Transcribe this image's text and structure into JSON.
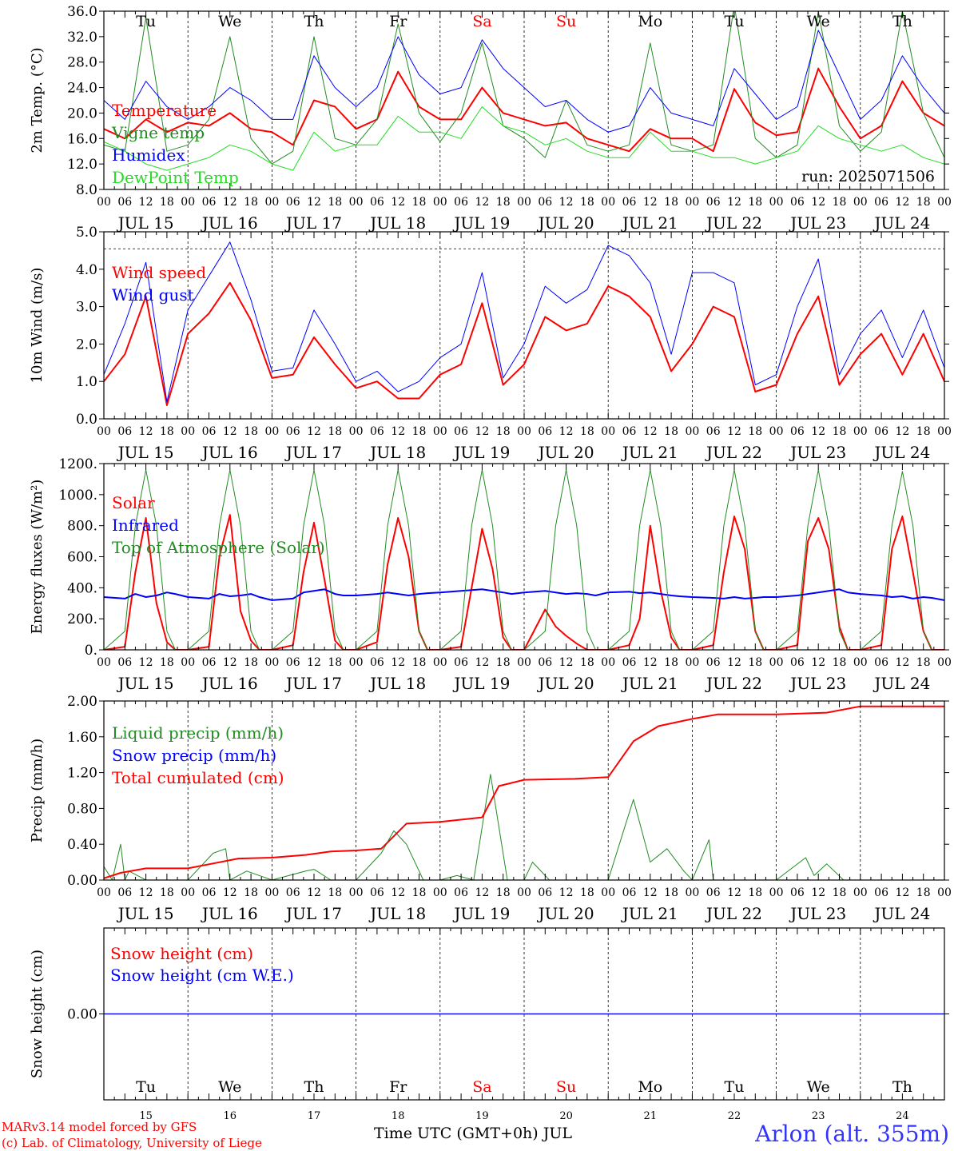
{
  "station": "Arlon (alt. 355m)",
  "run_label": "run: 2025071506",
  "credits": [
    "MARv3.14 model forced by GFS",
    "(c) Lab. of Climatology, University of Liege"
  ],
  "xlabel": "Time UTC (GMT+0h) JUL",
  "hour_ticks": [
    "00",
    "06",
    "12",
    "18"
  ],
  "day_labels": [
    "JUL 15",
    "JUL 16",
    "JUL 17",
    "JUL 18",
    "JUL 19",
    "JUL 20",
    "JUL 21",
    "JUL 22",
    "JUL 23",
    "JUL 24"
  ],
  "weekdays": [
    "Tu",
    "We",
    "Th",
    "Fr",
    "Sa",
    "Su",
    "Mo",
    "Tu",
    "We",
    "Th"
  ],
  "weekend_flags": [
    false,
    false,
    false,
    false,
    true,
    true,
    false,
    false,
    false,
    false
  ],
  "day_numbers": [
    "15",
    "16",
    "17",
    "18",
    "19",
    "20",
    "21",
    "22",
    "23",
    "24"
  ],
  "colors": {
    "red": "#ff0000",
    "green": "#228b22",
    "blue": "#0000ff",
    "lightgreen": "#22dd22",
    "weekend": "#ff0000"
  },
  "chart_data": [
    {
      "type": "line",
      "ylabel": "2m Temp. (°C)",
      "ylim": [
        8,
        36
      ],
      "yticks": [
        "8.0",
        "12.0",
        "16.0",
        "20.0",
        "24.0",
        "28.0",
        "32.0",
        "36.0"
      ],
      "ref_line": 36,
      "x_days": [
        0,
        0.25,
        0.5,
        0.75,
        1,
        1.25,
        1.5,
        1.75,
        2,
        2.25,
        2.5,
        2.75,
        3,
        3.25,
        3.5,
        3.75,
        4,
        4.25,
        4.5,
        4.75,
        5,
        5.25,
        5.5,
        5.75,
        6,
        6.25,
        6.5,
        6.75,
        7,
        7.25,
        7.5,
        7.75,
        8,
        8.25,
        8.5,
        8.75,
        9,
        9.25,
        9.5,
        9.75,
        10
      ],
      "series": [
        {
          "name": "Temperature",
          "color": "#ff0000",
          "width": 2,
          "values": [
            17.5,
            16,
            19,
            17,
            18.5,
            18,
            20,
            17.5,
            17,
            15,
            22,
            21,
            17.5,
            19,
            26.5,
            21,
            19,
            19,
            24,
            20,
            19,
            18,
            18.5,
            16,
            15,
            14,
            17.5,
            16,
            16,
            14,
            23.8,
            18.5,
            16.5,
            17,
            27,
            21,
            16,
            18,
            25,
            20,
            18
          ]
        },
        {
          "name": "Vigne temp",
          "color": "#228b22",
          "width": 1,
          "values": [
            15,
            14,
            35,
            14,
            15,
            19,
            32,
            16,
            12,
            14,
            32,
            16,
            15,
            19,
            34,
            20,
            15.5,
            20,
            31,
            18,
            16,
            13,
            22,
            15,
            14,
            15,
            31,
            15,
            14,
            15,
            37,
            16,
            13,
            15,
            36,
            18,
            14,
            17,
            36,
            20,
            13
          ]
        },
        {
          "name": "Humidex",
          "color": "#0000ff",
          "width": 1,
          "values": [
            22,
            19,
            25,
            21,
            19,
            21,
            24,
            22,
            19,
            19,
            29,
            24,
            21,
            24,
            32,
            26,
            23,
            24,
            31.5,
            27,
            24,
            21,
            22,
            19,
            17,
            18,
            24,
            20,
            19,
            18,
            27,
            23,
            19,
            21,
            33,
            26,
            19,
            22,
            29,
            24,
            20
          ]
        },
        {
          "name": "DewPoint Temp",
          "color": "#22dd22",
          "width": 1,
          "values": [
            15.5,
            14,
            12,
            11,
            12,
            13,
            15,
            14,
            12,
            11,
            17,
            14,
            15,
            15,
            19.5,
            17,
            17,
            16,
            21,
            18,
            17,
            15,
            16,
            14,
            13,
            13,
            17,
            14,
            14,
            13,
            13,
            12,
            13,
            14,
            18,
            16,
            15,
            14,
            15,
            13,
            12
          ]
        }
      ]
    },
    {
      "type": "line",
      "ylabel": "10m Wind (m/s)",
      "ylim": [
        0,
        5.5
      ],
      "yticks": [
        "0.0",
        "1.0",
        "2.0",
        "3.0",
        "4.0",
        "5.0"
      ],
      "ref_line": 5.0,
      "x_days": [
        0,
        0.25,
        0.5,
        0.75,
        1,
        1.25,
        1.5,
        1.75,
        2,
        2.25,
        2.5,
        2.75,
        3,
        3.25,
        3.5,
        3.75,
        4,
        4.25,
        4.5,
        4.75,
        5,
        5.25,
        5.5,
        5.75,
        6,
        6.25,
        6.5,
        6.75,
        7,
        7.25,
        7.5,
        7.75,
        8,
        8.25,
        8.5,
        8.75,
        9,
        9.25,
        9.5,
        9.75,
        10
      ],
      "series": [
        {
          "name": "Wind speed",
          "color": "#ff0000",
          "width": 2,
          "values": [
            1.1,
            1.9,
            3.6,
            0.4,
            2.5,
            3.1,
            4.0,
            2.9,
            1.2,
            1.3,
            2.4,
            1.6,
            0.9,
            1.1,
            0.6,
            0.6,
            1.3,
            1.6,
            3.4,
            1.0,
            1.6,
            3.0,
            2.6,
            2.8,
            3.9,
            3.6,
            3.0,
            1.4,
            2.2,
            3.3,
            3.0,
            0.8,
            1.0,
            2.5,
            3.6,
            1.0,
            1.9,
            2.5,
            1.3,
            2.5,
            1.1
          ]
        },
        {
          "name": "Wind gust",
          "color": "#0000ff",
          "width": 1,
          "values": [
            1.3,
            2.8,
            4.6,
            0.5,
            3.2,
            4.2,
            5.2,
            3.5,
            1.4,
            1.5,
            3.2,
            2.2,
            1.1,
            1.4,
            0.8,
            1.1,
            1.8,
            2.2,
            4.3,
            1.2,
            2.2,
            3.9,
            3.4,
            3.8,
            5.1,
            4.8,
            4.0,
            1.9,
            4.3,
            4.3,
            4.0,
            1.0,
            1.3,
            3.3,
            4.7,
            1.3,
            2.5,
            3.2,
            1.8,
            3.2,
            1.5
          ]
        }
      ]
    },
    {
      "type": "line",
      "ylabel": "Energy fluxes (W/m²)",
      "ylim": [
        0,
        1200
      ],
      "yticks": [
        "0.",
        "200.",
        "400.",
        "600.",
        "800.",
        "1000.",
        "1200."
      ],
      "x_days": [
        0,
        0.25,
        0.375,
        0.5,
        0.625,
        0.75,
        0.85,
        1,
        1.25,
        1.375,
        1.5,
        1.625,
        1.75,
        1.85,
        2,
        2.25,
        2.375,
        2.5,
        2.625,
        2.75,
        2.85,
        3,
        3.25,
        3.375,
        3.5,
        3.625,
        3.75,
        3.85,
        4,
        4.25,
        4.375,
        4.5,
        4.625,
        4.75,
        4.85,
        5,
        5.25,
        5.375,
        5.5,
        5.625,
        5.75,
        5.85,
        6,
        6.25,
        6.375,
        6.5,
        6.625,
        6.75,
        6.85,
        7,
        7.25,
        7.375,
        7.5,
        7.625,
        7.75,
        7.85,
        8,
        8.25,
        8.375,
        8.5,
        8.625,
        8.75,
        8.85,
        9,
        9.25,
        9.375,
        9.5,
        9.625,
        9.75,
        9.85,
        10
      ],
      "series": [
        {
          "name": "Solar",
          "color": "#ff0000",
          "width": 2,
          "values": [
            0,
            20,
            500,
            850,
            300,
            50,
            0,
            0,
            20,
            600,
            870,
            250,
            60,
            0,
            0,
            30,
            500,
            820,
            450,
            60,
            0,
            0,
            50,
            550,
            850,
            600,
            120,
            0,
            0,
            20,
            400,
            780,
            520,
            80,
            0,
            0,
            260,
            150,
            90,
            40,
            0,
            0,
            0,
            30,
            200,
            800,
            380,
            80,
            0,
            0,
            30,
            500,
            860,
            650,
            120,
            0,
            0,
            30,
            700,
            850,
            650,
            150,
            0,
            0,
            30,
            650,
            860,
            500,
            120,
            0,
            0
          ]
        },
        {
          "name": "Infrared",
          "color": "#0000ff",
          "width": 2,
          "values": [
            340,
            330,
            360,
            340,
            350,
            370,
            360,
            340,
            330,
            360,
            345,
            350,
            360,
            340,
            320,
            330,
            370,
            380,
            390,
            360,
            350,
            350,
            360,
            370,
            360,
            350,
            360,
            365,
            370,
            380,
            385,
            390,
            380,
            370,
            360,
            370,
            380,
            370,
            360,
            365,
            360,
            350,
            370,
            375,
            365,
            370,
            360,
            350,
            345,
            340,
            335,
            330,
            340,
            330,
            335,
            340,
            340,
            350,
            360,
            370,
            380,
            390,
            370,
            360,
            350,
            340,
            345,
            330,
            340,
            335,
            320
          ]
        },
        {
          "name": "Top of Atmosphere (Solar)",
          "color": "#228b22",
          "width": 1,
          "values": [
            0,
            120,
            800,
            1160,
            800,
            120,
            0,
            0,
            120,
            800,
            1160,
            800,
            120,
            0,
            0,
            120,
            800,
            1160,
            800,
            120,
            0,
            0,
            120,
            800,
            1160,
            800,
            120,
            0,
            0,
            120,
            800,
            1160,
            800,
            120,
            0,
            0,
            120,
            800,
            1160,
            800,
            120,
            0,
            0,
            120,
            800,
            1160,
            800,
            120,
            0,
            0,
            120,
            800,
            1160,
            800,
            120,
            0,
            0,
            120,
            800,
            1160,
            800,
            120,
            0,
            0,
            120,
            800,
            1150,
            800,
            120,
            0,
            0
          ]
        }
      ]
    },
    {
      "type": "line",
      "ylabel": "Precip (mm/h)",
      "ylim": [
        0,
        2
      ],
      "yticks": [
        "0.00",
        "0.40",
        "0.80",
        "1.20",
        "1.60",
        "2.00"
      ],
      "series": [
        {
          "name": "Liquid precip (mm/h)",
          "color": "#228b22",
          "width": 1,
          "x_days": [
            0,
            0.1,
            0.2,
            0.25,
            0.3,
            0.4,
            0.5,
            0.6,
            1.0,
            1.3,
            1.45,
            1.5,
            1.7,
            2.0,
            2.4,
            2.5,
            2.7,
            3.0,
            3.3,
            3.45,
            3.6,
            3.8,
            4.0,
            4.2,
            4.4,
            4.6,
            4.8,
            5.0,
            5.1,
            5.3,
            5.6,
            6.0,
            6.2,
            6.3,
            6.5,
            6.7,
            6.9,
            7.0,
            7.2,
            7.25,
            7.4,
            8.0,
            8.35,
            8.45,
            8.6,
            8.8,
            9.0,
            10.0
          ],
          "values": [
            0.15,
            0,
            0.4,
            0,
            0.1,
            0.05,
            0,
            0,
            0,
            0.3,
            0.35,
            0,
            0.1,
            0,
            0.1,
            0.12,
            0,
            0,
            0.3,
            0.55,
            0.4,
            0,
            0,
            0.05,
            0,
            1.18,
            0,
            0,
            0.2,
            0,
            0,
            0,
            0.6,
            0.9,
            0.2,
            0.35,
            0.1,
            0,
            0.45,
            0,
            0,
            0,
            0.25,
            0.05,
            0.18,
            0,
            0,
            0
          ]
        },
        {
          "name": "Snow precip (mm/h)",
          "color": "#0000ff",
          "width": 1,
          "x_days": [
            0,
            10
          ],
          "values": [
            0,
            0
          ]
        },
        {
          "name": "Total cumulated (cm)",
          "color": "#ff0000",
          "width": 2,
          "x_days": [
            0,
            0.2,
            0.5,
            1.0,
            1.6,
            2.0,
            2.4,
            2.7,
            3.0,
            3.3,
            3.6,
            4.0,
            4.5,
            4.7,
            5.0,
            5.6,
            6.0,
            6.3,
            6.6,
            7.0,
            7.3,
            8.0,
            8.6,
            9.0,
            10.0
          ],
          "values": [
            0.02,
            0.08,
            0.13,
            0.13,
            0.24,
            0.25,
            0.28,
            0.32,
            0.33,
            0.35,
            0.63,
            0.65,
            0.7,
            1.05,
            1.12,
            1.13,
            1.15,
            1.55,
            1.72,
            1.8,
            1.85,
            1.85,
            1.87,
            1.94,
            1.94
          ]
        }
      ]
    },
    {
      "type": "line",
      "ylabel": "Snow height (cm)",
      "ylim": [
        -1,
        1
      ],
      "yticks": [
        "0.00"
      ],
      "series": [
        {
          "name": "Snow height (cm)",
          "color": "#ff0000",
          "width": 1.5,
          "x_days": [
            0,
            10
          ],
          "values": [
            0,
            0
          ]
        },
        {
          "name": "Snow height (cm W.E.)",
          "color": "#0000ff",
          "width": 1,
          "x_days": [
            0,
            10
          ],
          "values": [
            0,
            0
          ]
        }
      ]
    }
  ]
}
